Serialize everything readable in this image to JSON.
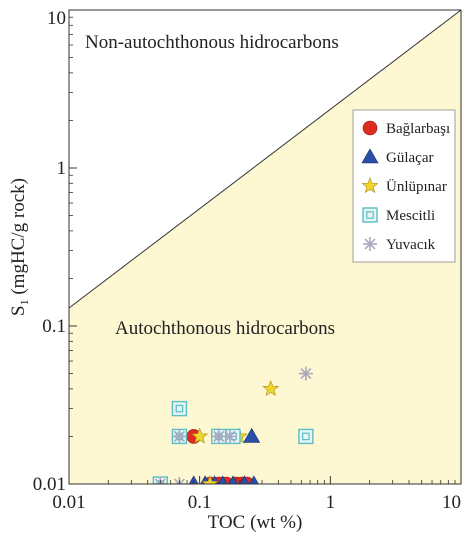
{
  "chart_data": {
    "type": "scatter",
    "title": "",
    "xlabel": "TOC (wt %)",
    "ylabel_main": "S",
    "ylabel_sub": "1",
    "ylabel_rest": " (mgHC/g rock)",
    "x_scale": "log",
    "y_scale": "log",
    "xlim": [
      0.01,
      10
    ],
    "ylim": [
      0.01,
      10
    ],
    "x_ticks": [
      {
        "value": 0.01,
        "label": "0.01"
      },
      {
        "value": 0.1,
        "label": "0.1"
      },
      {
        "value": 1,
        "label": "1"
      },
      {
        "value": 10,
        "label": "10"
      }
    ],
    "y_ticks": [
      {
        "value": 0.01,
        "label": "0.01"
      },
      {
        "value": 0.1,
        "label": "0.1"
      },
      {
        "value": 1,
        "label": "1"
      },
      {
        "value": 10,
        "label": "10"
      }
    ],
    "grid": false,
    "legend_position": "right",
    "boundary_line": {
      "from": [
        0.01,
        0.13
      ],
      "to": [
        10,
        10
      ]
    },
    "regions": {
      "upper_label": "Non-autochthonous hidrocarbons",
      "lower_label": "Autochthonous hidrocarbons",
      "lower_fill": "#fdf7d2"
    },
    "series": [
      {
        "name": "Bağlarbaşı",
        "marker": "circle",
        "color": "#e02a22",
        "points": [
          [
            0.09,
            0.02
          ],
          [
            0.12,
            0.01
          ],
          [
            0.14,
            0.01
          ],
          [
            0.16,
            0.01
          ],
          [
            0.19,
            0.01
          ],
          [
            0.21,
            0.01
          ],
          [
            0.23,
            0.01
          ]
        ]
      },
      {
        "name": "Gülaçar",
        "marker": "triangle",
        "color": "#2a4fa8",
        "points": [
          [
            0.09,
            0.01
          ],
          [
            0.11,
            0.01
          ],
          [
            0.13,
            0.01
          ],
          [
            0.15,
            0.01
          ],
          [
            0.18,
            0.01
          ],
          [
            0.22,
            0.01
          ],
          [
            0.26,
            0.01
          ],
          [
            0.25,
            0.02
          ]
        ]
      },
      {
        "name": "Ünlüpınar",
        "marker": "star",
        "color": "#f2d62e",
        "points": [
          [
            0.1,
            0.02
          ],
          [
            0.12,
            0.01
          ],
          [
            0.14,
            0.02
          ],
          [
            0.2,
            0.02
          ],
          [
            0.35,
            0.04
          ]
        ]
      },
      {
        "name": "Mescitli",
        "marker": "square",
        "color": "#5bbfc4",
        "points": [
          [
            0.05,
            0.01
          ],
          [
            0.07,
            0.02
          ],
          [
            0.07,
            0.03
          ],
          [
            0.14,
            0.02
          ],
          [
            0.18,
            0.02
          ],
          [
            0.65,
            0.02
          ]
        ]
      },
      {
        "name": "Yuvacık",
        "marker": "asterisk",
        "color": "#a8a8c0",
        "points": [
          [
            0.05,
            0.01
          ],
          [
            0.07,
            0.01
          ],
          [
            0.07,
            0.02
          ],
          [
            0.14,
            0.02
          ],
          [
            0.17,
            0.02
          ],
          [
            0.65,
            0.05
          ]
        ]
      }
    ]
  }
}
